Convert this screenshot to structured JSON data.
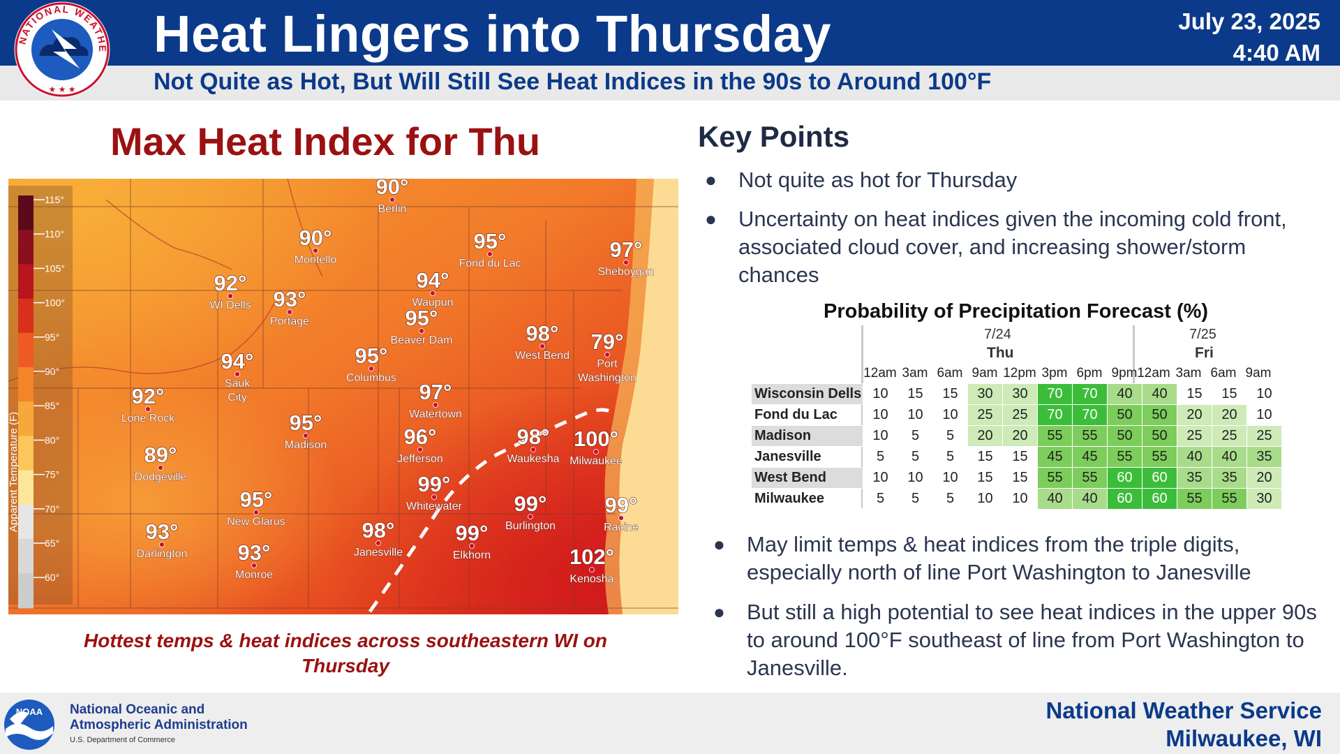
{
  "header": {
    "title": "Heat Lingers into Thursday",
    "subtitle": "Not Quite as Hot, But Will Still See Heat Indices in the 90s to Around 100°F",
    "date": "July 23, 2025",
    "time": "4:40 AM",
    "logo_text": "NATIONAL WEATHER SERVICE",
    "logo_icon": "nws-logo-icon",
    "brand_color": "#0b3a8a"
  },
  "map": {
    "title": "Max Heat Index for Thu",
    "caption": "Hottest temps & heat indices across southeastern WI on Thursday",
    "legend_label": "Apparent Temperature (F)",
    "legend_ticks": [
      "115°",
      "110°",
      "105°",
      "100°",
      "95°",
      "90°",
      "85°",
      "80°",
      "75°",
      "70°",
      "65°",
      "60°"
    ],
    "legend_colors": [
      "#5c0a1a",
      "#8a0f1f",
      "#b8151c",
      "#d9301c",
      "#ee5a22",
      "#f4842a",
      "#f8a83a",
      "#fbc65a",
      "#fde69a",
      "#e6e6e6",
      "#d8d8d8",
      "#cccccc"
    ],
    "locations": [
      {
        "name": "Berlin",
        "value": "90°"
      },
      {
        "name": "Montello",
        "value": "90°"
      },
      {
        "name": "Fond du Lac",
        "value": "95°"
      },
      {
        "name": "Sheboygan",
        "value": "97°"
      },
      {
        "name": "WI Dells",
        "value": "92°"
      },
      {
        "name": "Portage",
        "value": "93°"
      },
      {
        "name": "Waupun",
        "value": "94°"
      },
      {
        "name": "Beaver Dam",
        "value": "95°"
      },
      {
        "name": "West Bend",
        "value": "98°"
      },
      {
        "name": "Port Washington",
        "value": "79°"
      },
      {
        "name": "Columbus",
        "value": "95°"
      },
      {
        "name": "Sauk City",
        "value": "94°"
      },
      {
        "name": "Watertown",
        "value": "97°"
      },
      {
        "name": "Lone Rock",
        "value": "92°"
      },
      {
        "name": "Madison",
        "value": "95°"
      },
      {
        "name": "Jefferson",
        "value": "96°"
      },
      {
        "name": "Waukesha",
        "value": "98°"
      },
      {
        "name": "Milwaukee",
        "value": "100°"
      },
      {
        "name": "Dodgeville",
        "value": "89°"
      },
      {
        "name": "Whitewater",
        "value": "99°"
      },
      {
        "name": "New Glarus",
        "value": "95°"
      },
      {
        "name": "Burlington",
        "value": "99°"
      },
      {
        "name": "Racine",
        "value": "99°"
      },
      {
        "name": "Darlington",
        "value": "93°"
      },
      {
        "name": "Janesville",
        "value": "98°"
      },
      {
        "name": "Elkhorn",
        "value": "99°"
      },
      {
        "name": "Monroe",
        "value": "93°"
      },
      {
        "name": "Kenosha",
        "value": "102°"
      }
    ]
  },
  "key_points": {
    "title": "Key Points",
    "bullets": [
      "Not quite as hot for Thursday",
      "Uncertainty on heat indices given the incoming cold front, associated cloud cover, and increasing shower/storm chances",
      "May limit temps & heat indices from the triple digits, especially north of line Port Washington to Janesville",
      "But still a high potential to see heat indices in the upper 90s to around 100°F southeast of line from Port Washington to Janesville."
    ]
  },
  "pop_table": {
    "title": "Probability of Precipitation Forecast (%)",
    "days": [
      {
        "date": "7/24",
        "day": "Thu"
      },
      {
        "date": "7/25",
        "day": "Fri"
      }
    ],
    "hours": [
      "12am",
      "3am",
      "6am",
      "9am",
      "12pm",
      "3pm",
      "6pm",
      "9pm",
      "12am",
      "3am",
      "6am",
      "9am"
    ],
    "rows": [
      {
        "city": "Wisconsin Dells",
        "values": [
          10,
          15,
          15,
          30,
          30,
          70,
          70,
          40,
          40,
          15,
          15,
          10
        ]
      },
      {
        "city": "Fond du Lac",
        "values": [
          10,
          10,
          10,
          25,
          25,
          70,
          70,
          50,
          50,
          20,
          20,
          10
        ]
      },
      {
        "city": "Madison",
        "values": [
          10,
          5,
          5,
          20,
          20,
          55,
          55,
          50,
          50,
          25,
          25,
          25
        ]
      },
      {
        "city": "Janesville",
        "values": [
          5,
          5,
          5,
          15,
          15,
          45,
          45,
          55,
          55,
          40,
          40,
          35
        ]
      },
      {
        "city": "West Bend",
        "values": [
          10,
          10,
          10,
          15,
          15,
          55,
          55,
          60,
          60,
          35,
          35,
          20
        ]
      },
      {
        "city": "Milwaukee",
        "values": [
          5,
          5,
          5,
          10,
          10,
          40,
          40,
          60,
          60,
          55,
          55,
          30
        ]
      }
    ]
  },
  "footer": {
    "noaa_line1": "National Oceanic and",
    "noaa_line2": "Atmospheric Administration",
    "noaa_dept": "U.S. Department of Commerce",
    "noaa_logo_text": "NOAA",
    "noaa_icon": "noaa-logo-icon",
    "office_line1": "National Weather Service",
    "office_line2": "Milwaukee, WI"
  }
}
